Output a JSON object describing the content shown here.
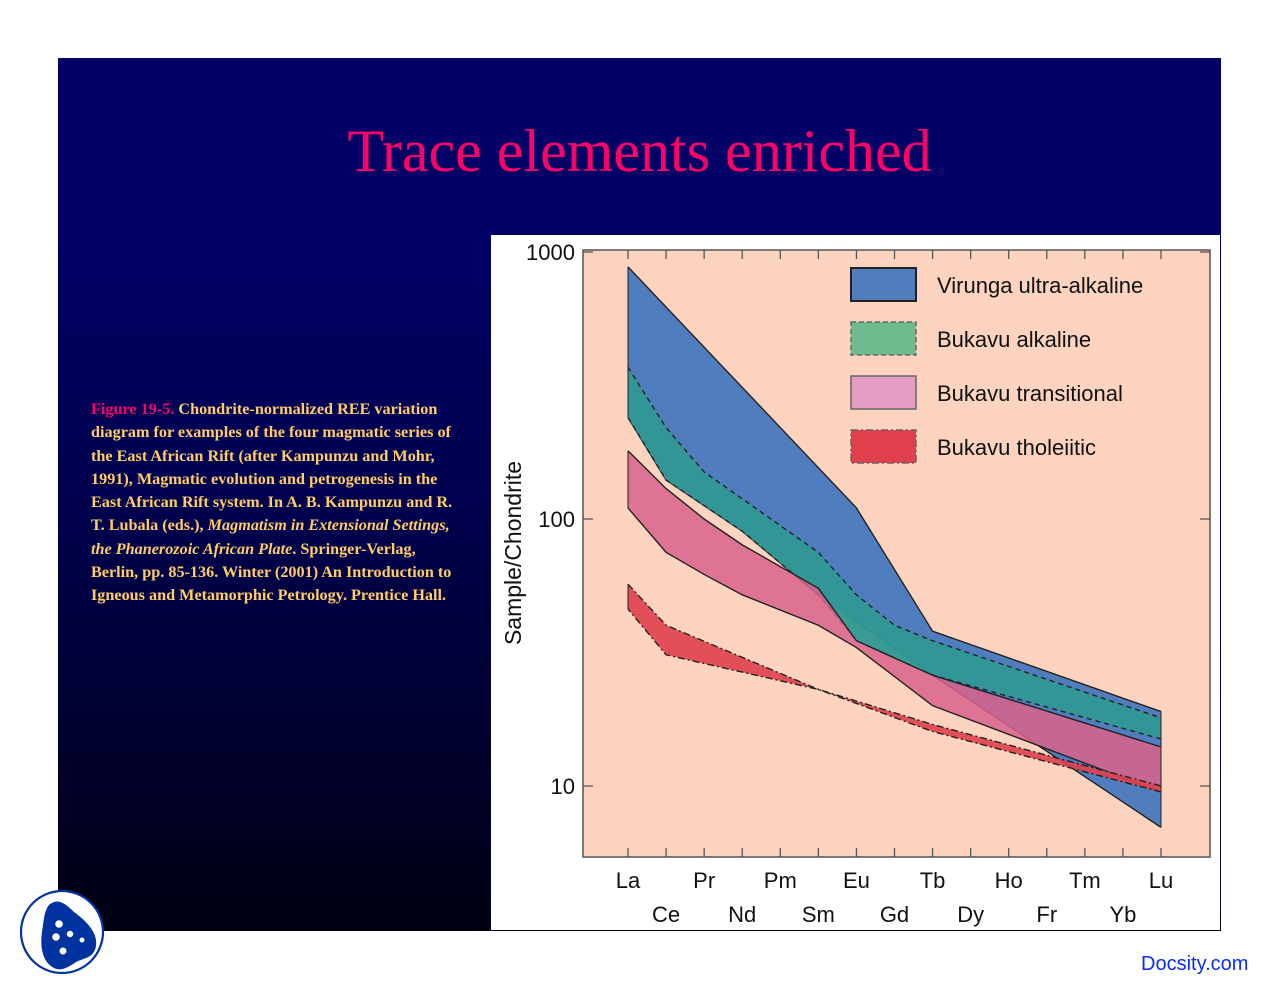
{
  "slide": {
    "title": "Trace elements enriched",
    "caption": {
      "figure_label": "Figure 19-5.",
      "text_1": " Chondrite-normalized REE variation diagram for examples of the four magmatic series of the East African Rift (after Kampunzu and Mohr, 1991), Magmatic evolution and petrogenesis in the East African Rift system. In A. B. Kampunzu and R. T. Lubala (eds.), ",
      "italic": "Magmatism in Extensional Settings, the Phanerozoic African Plate",
      "text_2": ". Springer-Verlag, Berlin, pp. 85-136. Winter (2001) An Introduction to Igneous and Metamorphic Petrology. Prentice Hall."
    },
    "watermark": "Docsity.com",
    "colors": {
      "title": "#ff0066",
      "caption": "#ffcc66",
      "background": "#000066",
      "plot_bg": "#fcd3bf"
    }
  },
  "chart_data": {
    "type": "area",
    "title": "",
    "xlabel": "",
    "ylabel": "Sample/Chondrite",
    "yscale": "log",
    "ylim": [
      6,
      1000
    ],
    "yticks": [
      "1000",
      "100",
      "10"
    ],
    "categories": [
      "La",
      "Ce",
      "Pr",
      "Nd",
      "Pm",
      "Sm",
      "Eu",
      "Gd",
      "Tb",
      "Dy",
      "Ho",
      "Fr",
      "Tm",
      "Yb",
      "Lu"
    ],
    "x_labels_top_row": [
      "La",
      "Pr",
      "Pm",
      "Eu",
      "Tb",
      "Ho",
      "Tm",
      "Lu"
    ],
    "x_labels_bottom_row": [
      "Ce",
      "Nd",
      "Sm",
      "Gd",
      "Dy",
      "Fr",
      "Yb"
    ],
    "legend": {
      "position": "upper right",
      "entries": [
        {
          "label": "Virunga ultra-alkaline",
          "color": "#4f7dbd",
          "border": "solid"
        },
        {
          "label": "Bukavu alkaline",
          "color": "#6fbb8f",
          "border": "dashed"
        },
        {
          "label": "Bukavu transitional",
          "color": "#e59cc2",
          "border": "solid"
        },
        {
          "label": "Bukavu tholeiitic",
          "color": "#e0404c",
          "border": "dash-dot"
        }
      ]
    },
    "series": [
      {
        "name": "Virunga ultra-alkaline",
        "x": [
          "La",
          "Eu",
          "Tb",
          "Lu"
        ],
        "upper": [
          880,
          110,
          38,
          19
        ],
        "lower_x": [
          "La",
          "Ce",
          "Nd",
          "Sm",
          "Tb",
          "Lu"
        ],
        "lower": [
          240,
          140,
          90,
          52,
          26,
          7
        ]
      },
      {
        "name": "Bukavu alkaline",
        "x": [
          "La",
          "Ce",
          "Pr",
          "Sm",
          "Eu",
          "Gd",
          "Tb",
          "Lu"
        ],
        "upper": [
          370,
          220,
          150,
          75,
          52,
          40,
          35,
          18
        ],
        "lower_x": [
          "La",
          "Ce",
          "Nd",
          "Sm",
          "Eu",
          "Tb",
          "Lu"
        ],
        "lower": [
          240,
          140,
          90,
          52,
          35,
          26,
          15
        ]
      },
      {
        "name": "Bukavu transitional",
        "x": [
          "La",
          "Ce",
          "Pr",
          "Nd",
          "Sm",
          "Eu",
          "Tb",
          "Lu"
        ],
        "upper": [
          180,
          130,
          100,
          80,
          55,
          35,
          26,
          14
        ],
        "lower_x": [
          "La",
          "Ce",
          "Pr",
          "Nd",
          "Sm",
          "Eu",
          "Tb",
          "Lu"
        ],
        "lower": [
          110,
          75,
          62,
          52,
          40,
          33,
          20,
          9.5
        ]
      },
      {
        "name": "Bukavu tholeiitic",
        "x": [
          "La",
          "Ce",
          "Sm",
          "Tb",
          "Lu"
        ],
        "upper": [
          57,
          40,
          23,
          17,
          10
        ],
        "lower_x": [
          "La",
          "Ce",
          "Sm",
          "Tb",
          "Lu"
        ],
        "lower": [
          46,
          31,
          23,
          16,
          9.5
        ]
      }
    ],
    "grid": false
  }
}
